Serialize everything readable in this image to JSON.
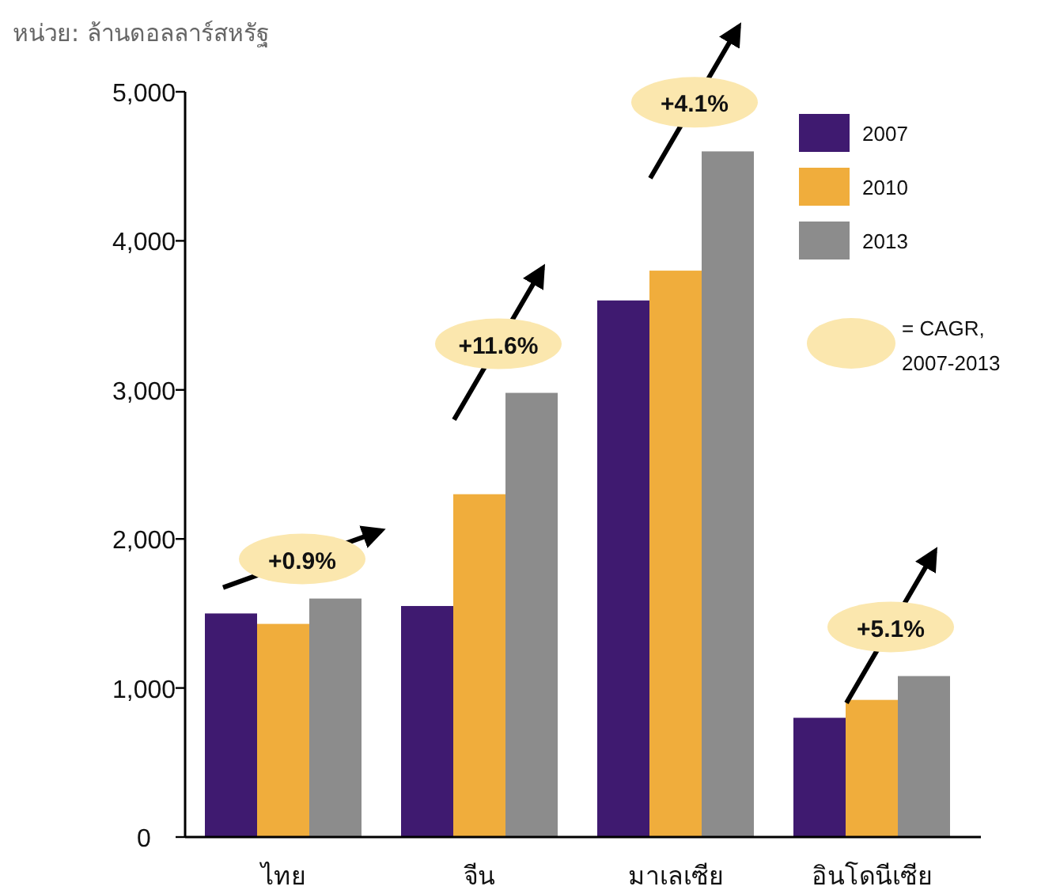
{
  "chart_data": {
    "type": "bar",
    "ylabel": "หน่วย: ล้านดอลลาร์สหรัฐ",
    "categories": [
      "ไทย",
      "จีน",
      "มาเลเซีย",
      "อินโดนีเซีย"
    ],
    "series": [
      {
        "name": "2007",
        "color": "#3f1a70",
        "values": [
          1500,
          1550,
          3600,
          800
        ]
      },
      {
        "name": "2010",
        "color": "#f0ad3c",
        "values": [
          1430,
          2300,
          3800,
          920
        ]
      },
      {
        "name": "2013",
        "color": "#8c8c8c",
        "values": [
          1600,
          2980,
          4600,
          1080
        ]
      }
    ],
    "ylim": [
      0,
      5000
    ],
    "yticks": [
      {
        "value": 0,
        "label": "0"
      },
      {
        "value": 1000,
        "label": "1,000"
      },
      {
        "value": 2000,
        "label": "2,000"
      },
      {
        "value": 3000,
        "label": "3,000"
      },
      {
        "value": 4000,
        "label": "4,000"
      },
      {
        "value": 5000,
        "label": "5,000"
      }
    ],
    "grid": false,
    "legend": "top right",
    "annotations": [
      "+0.9%",
      "+11.6%",
      "+4.1%",
      "+5.1%",
      "= CAGR, 2007-2013"
    ]
  }
}
